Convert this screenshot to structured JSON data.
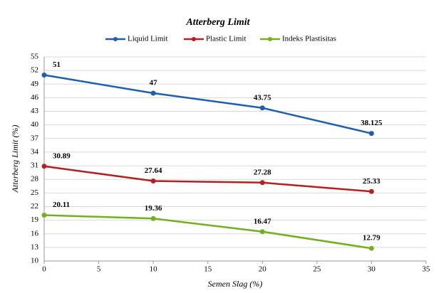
{
  "chart_data": {
    "type": "line",
    "title": "Atterberg Limit",
    "x_label": "Semen Slag (%)",
    "y_label": "Atterberg Limit (%)",
    "x": [
      0,
      10,
      20,
      30
    ],
    "series": [
      {
        "name": "Liquid Limit",
        "color": "#1f5fae",
        "values": [
          51,
          47,
          43.75,
          38.125
        ]
      },
      {
        "name": "Plastic Limit",
        "color": "#b42020",
        "values": [
          30.89,
          27.64,
          27.28,
          25.33
        ]
      },
      {
        "name": "Indeks Plastisitas",
        "color": "#72b01c",
        "values": [
          20.11,
          19.36,
          16.47,
          12.79
        ]
      }
    ],
    "xlim": [
      0,
      35
    ],
    "xticks": [
      0,
      5,
      10,
      15,
      20,
      25,
      30,
      35
    ],
    "ylim": [
      10,
      55
    ],
    "yticks": [
      10,
      13,
      16,
      19,
      22,
      25,
      28,
      31,
      34,
      37,
      40,
      43,
      46,
      49,
      52,
      55
    ],
    "grid": true
  }
}
